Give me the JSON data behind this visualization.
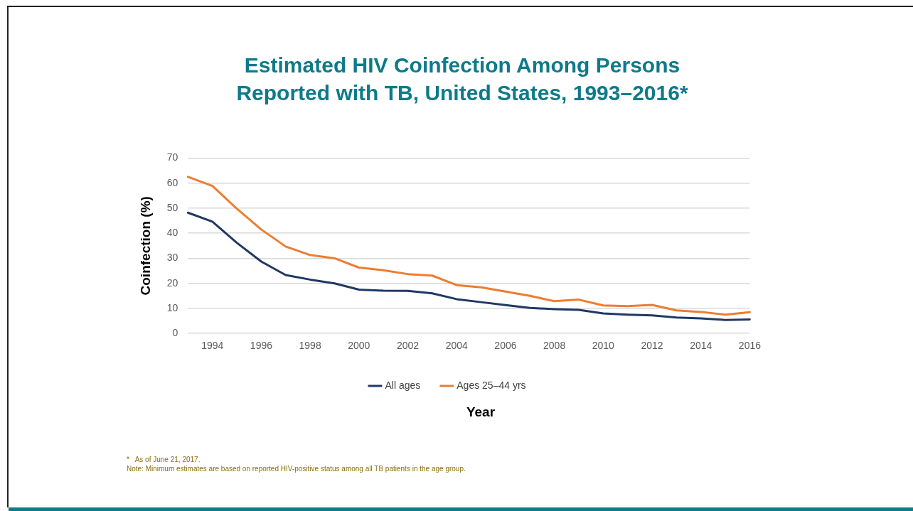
{
  "chart_data": {
    "type": "line",
    "title": "Estimated HIV Coinfection Among Persons Reported with TB, United States, 1993–2016*",
    "xlabel": "Year",
    "ylabel": "Coinfection (%)",
    "categories": [
      null,
      "1994",
      null,
      "1996",
      null,
      "1998",
      null,
      "2000",
      null,
      "2002",
      null,
      "2004",
      null,
      "2006",
      null,
      "2008",
      null,
      "2010",
      null,
      "2012",
      null,
      "2014",
      null,
      "2016"
    ],
    "series": [
      {
        "name": "All ages",
        "color": "#203864",
        "values": [
          48.2,
          44.6,
          36.2,
          28.7,
          23.3,
          21.5,
          20.0,
          17.5,
          17.1,
          17.0,
          16.0,
          13.7,
          12.5,
          11.3,
          10.2,
          9.7,
          9.4,
          8.0,
          7.5,
          7.2,
          6.4,
          6.0,
          5.4,
          5.6
        ]
      },
      {
        "name": "Ages 25–44 yrs",
        "color": "#ed7d31",
        "values": [
          62.5,
          58.9,
          49.8,
          41.5,
          34.7,
          31.3,
          30.0,
          26.3,
          25.2,
          23.7,
          23.1,
          19.3,
          18.4,
          16.7,
          15.0,
          12.9,
          13.5,
          11.2,
          10.9,
          11.4,
          9.2,
          8.6,
          7.5,
          8.5
        ]
      }
    ],
    "ylim": [
      0,
      70
    ],
    "yticks": [
      0,
      10,
      20,
      30,
      40,
      50,
      60,
      70
    ],
    "grid": "y",
    "legend": "bottom",
    "marker": "none",
    "line_style": "solid",
    "annotations": [
      "*   As of June 21, 2017.",
      "Note: Minimum estimates are based on reported HIV-positive status among all TB patients in the age group."
    ]
  }
}
